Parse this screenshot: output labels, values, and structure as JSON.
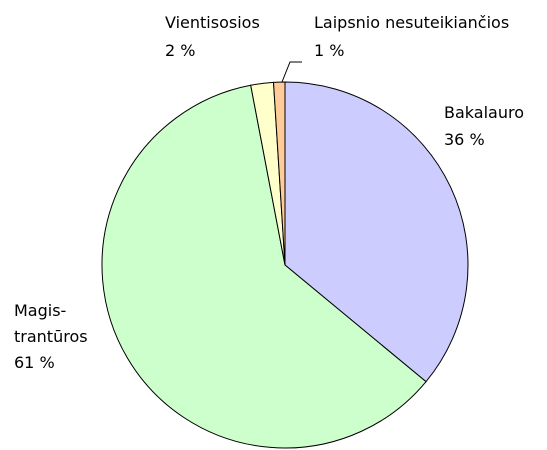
{
  "chart_data": {
    "type": "pie",
    "categories": [
      "Bakalauro",
      "Magis-\ntrantūros",
      "Vientisosios",
      "Laipsnio nesuteikiančios"
    ],
    "values": [
      36,
      61,
      2,
      1
    ],
    "value_labels": [
      "36 %",
      "61 %",
      "2 %",
      "1 %"
    ],
    "colors": [
      "#ccccff",
      "#ccffcc",
      "#ffffcc",
      "#ffcc99"
    ]
  }
}
